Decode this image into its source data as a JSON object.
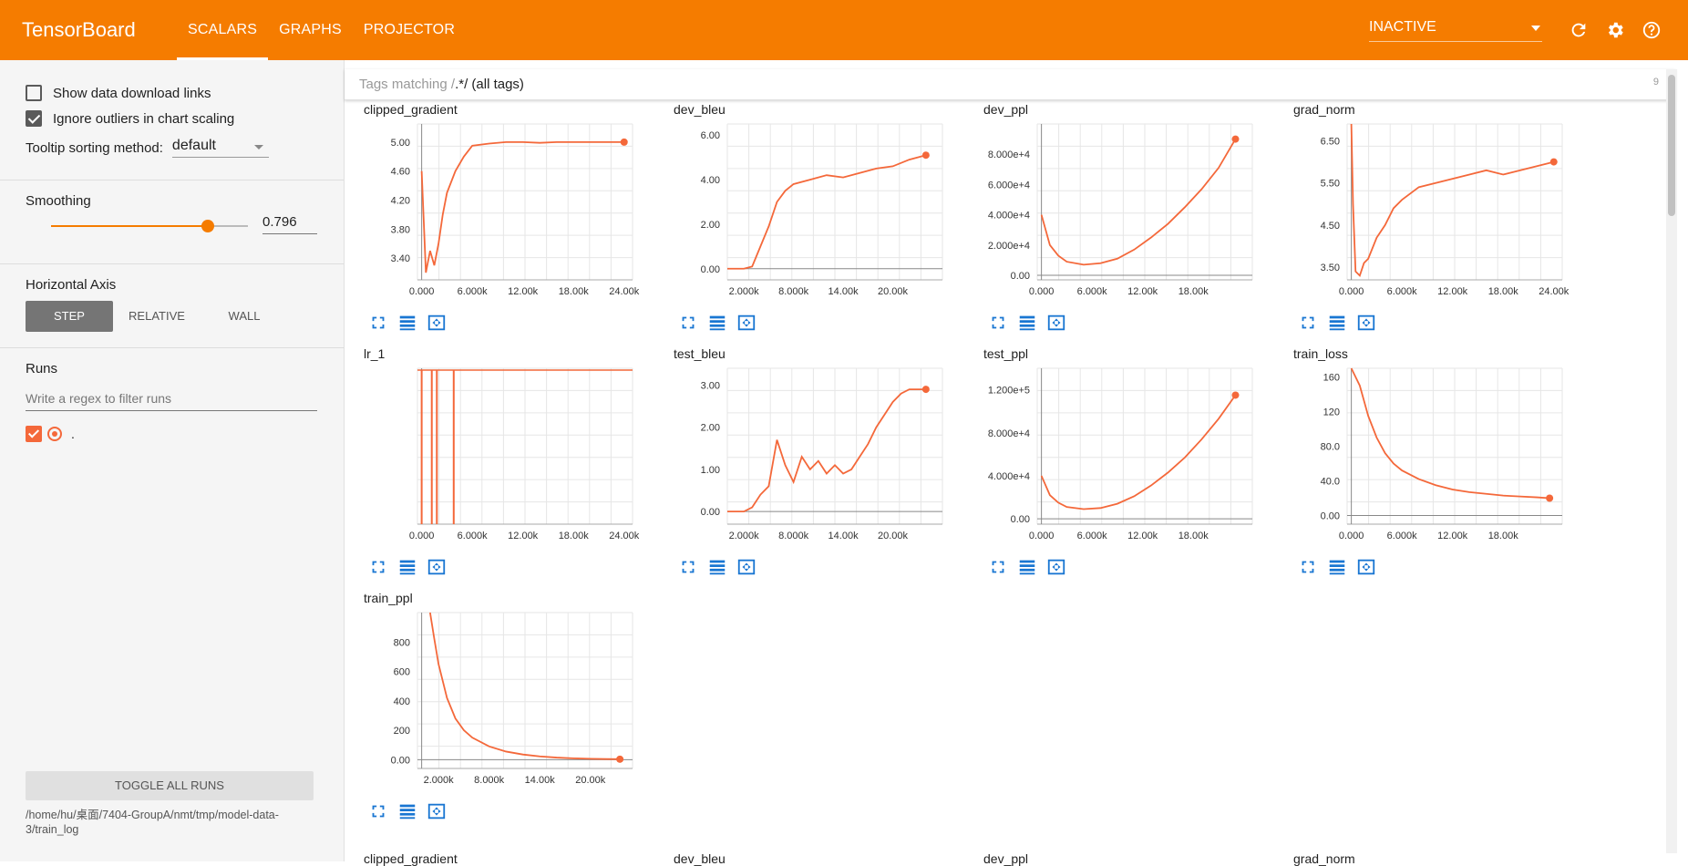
{
  "app": {
    "title": "TensorBoard"
  },
  "nav": {
    "tabs": [
      {
        "label": "SCALARS",
        "active": true
      },
      {
        "label": "GRAPHS"
      },
      {
        "label": "PROJECTOR"
      }
    ]
  },
  "toolbar": {
    "status": "INACTIVE",
    "icons": [
      "refresh-icon",
      "settings-icon",
      "help-icon"
    ]
  },
  "sidebar": {
    "show_download_links": "Show data download links",
    "ignore_outliers": "Ignore outliers in chart scaling",
    "tooltip_label": "Tooltip sorting method:",
    "tooltip_value": "default",
    "smoothing_label": "Smoothing",
    "smoothing_value": "0.796",
    "smoothing_level": 0.796,
    "haxis_label": "Horizontal Axis",
    "haxis_options": [
      "STEP",
      "RELATIVE",
      "WALL"
    ],
    "runs_label": "Runs",
    "runs_filter_placeholder": "Write a regex to filter runs",
    "run_name": ".",
    "toggle_all": "TOGGLE ALL RUNS",
    "logdir": "/home/hu/桌面/7404-GroupA/nmt/tmp/model-data-3/train_log"
  },
  "main": {
    "tag_prefix": "Tags matching /",
    "tag_regex": ".*",
    "tag_suffix": "/ (all tags)",
    "tag_count": "9",
    "below_fold_titles": [
      "clipped_gradient",
      "dev_bleu",
      "dev_ppl",
      "grad_norm"
    ]
  },
  "colors": {
    "accent": "#f57c00",
    "series": "#f4683a",
    "series_light": "#fbc9b5",
    "icon_blue": "#1976d2"
  },
  "chart_data": [
    {
      "type": "line",
      "title": "clipped_gradient",
      "xmin": -500,
      "xmax": 25000,
      "ymin": 3.1,
      "ymax": 5.25,
      "xticks": [
        0,
        6000,
        12000,
        18000,
        24000
      ],
      "xtick_labels": [
        "0.000",
        "6.000k",
        "12.00k",
        "18.00k",
        "24.00k"
      ],
      "yticks": [
        3.4,
        3.8,
        4.2,
        4.6,
        5.0
      ],
      "ytick_labels": [
        "3.40",
        "3.80",
        "4.20",
        "4.60",
        "5.00"
      ],
      "series": [
        {
          "x": [
            0,
            500,
            1000,
            1500,
            2000,
            2500,
            3000,
            4000,
            5000,
            6000,
            8000,
            10000,
            12000,
            14000,
            16000,
            18000,
            20000,
            22000,
            24000
          ],
          "y": [
            4.6,
            3.2,
            3.5,
            3.3,
            3.6,
            4.0,
            4.3,
            4.6,
            4.8,
            4.95,
            4.98,
            5.0,
            5.0,
            4.99,
            5.0,
            5.0,
            5.0,
            5.0,
            5.0
          ]
        }
      ]
    },
    {
      "type": "line",
      "title": "dev_bleu",
      "xmin": 0,
      "xmax": 26000,
      "ymin": -0.5,
      "ymax": 6.5,
      "xticks": [
        2000,
        8000,
        14000,
        20000
      ],
      "xtick_labels": [
        "2.000k",
        "8.000k",
        "14.00k",
        "20.00k"
      ],
      "yticks": [
        0,
        2,
        4,
        6
      ],
      "ytick_labels": [
        "0.00",
        "2.00",
        "4.00",
        "6.00"
      ],
      "series": [
        {
          "x": [
            0,
            2000,
            3000,
            4000,
            5000,
            6000,
            7000,
            8000,
            10000,
            12000,
            14000,
            16000,
            18000,
            20000,
            22000,
            24000
          ],
          "y": [
            0,
            0,
            0.1,
            1.0,
            1.9,
            3.0,
            3.5,
            3.8,
            4.0,
            4.2,
            4.1,
            4.3,
            4.5,
            4.6,
            4.9,
            5.1
          ]
        }
      ]
    },
    {
      "type": "line",
      "title": "dev_ppl",
      "xmin": -500,
      "xmax": 25000,
      "ymin": -3000,
      "ymax": 100000,
      "xticks": [
        0,
        6000,
        12000,
        18000
      ],
      "xtick_labels": [
        "0.000",
        "6.000k",
        "12.00k",
        "18.00k"
      ],
      "yticks": [
        0,
        20000,
        40000,
        60000,
        80000
      ],
      "ytick_labels": [
        "0.00",
        "2.000e+4",
        "4.000e+4",
        "6.000e+4",
        "8.000e+4"
      ],
      "series": [
        {
          "x": [
            0,
            1000,
            2000,
            3000,
            5000,
            7000,
            9000,
            11000,
            13000,
            15000,
            17000,
            19000,
            21000,
            23000
          ],
          "y": [
            40000,
            20000,
            13000,
            9000,
            7000,
            8000,
            11000,
            17000,
            25000,
            34000,
            45000,
            57000,
            71000,
            90000
          ]
        }
      ]
    },
    {
      "type": "line",
      "title": "grad_norm",
      "xmin": -500,
      "xmax": 25000,
      "ymin": 3.2,
      "ymax": 6.9,
      "xticks": [
        0,
        6000,
        12000,
        18000,
        24000
      ],
      "xtick_labels": [
        "0.000",
        "6.000k",
        "12.00k",
        "18.00k",
        "24.00k"
      ],
      "yticks": [
        3.5,
        4.5,
        5.5,
        6.5
      ],
      "ytick_labels": [
        "3.50",
        "4.50",
        "5.50",
        "6.50"
      ],
      "series": [
        {
          "x": [
            0,
            200,
            500,
            1000,
            1500,
            2000,
            3000,
            4000,
            5000,
            6000,
            8000,
            10000,
            12000,
            14000,
            16000,
            18000,
            20000,
            22000,
            24000
          ],
          "y": [
            6.9,
            5.0,
            3.4,
            3.3,
            3.6,
            3.7,
            4.2,
            4.5,
            4.9,
            5.1,
            5.4,
            5.5,
            5.6,
            5.7,
            5.8,
            5.7,
            5.8,
            5.9,
            6.0
          ]
        }
      ]
    },
    {
      "type": "line",
      "title": "lr_1",
      "xmin": -500,
      "xmax": 25000,
      "ymin": 0,
      "ymax": 1,
      "xticks": [
        0,
        6000,
        12000,
        18000,
        24000
      ],
      "xtick_labels": [
        "0.000",
        "6.000k",
        "12.00k",
        "18.00k",
        "24.00k"
      ],
      "yticks": [],
      "ytick_labels": [],
      "spikes_x": [
        0,
        1200,
        1800,
        3800
      ]
    },
    {
      "type": "line",
      "title": "test_bleu",
      "xmin": 0,
      "xmax": 26000,
      "ymin": -0.3,
      "ymax": 3.4,
      "xticks": [
        2000,
        8000,
        14000,
        20000
      ],
      "xtick_labels": [
        "2.000k",
        "8.000k",
        "14.00k",
        "20.00k"
      ],
      "yticks": [
        0,
        1,
        2,
        3
      ],
      "ytick_labels": [
        "0.00",
        "1.00",
        "2.00",
        "3.00"
      ],
      "series": [
        {
          "x": [
            0,
            2000,
            3000,
            4000,
            5000,
            6000,
            7000,
            8000,
            9000,
            10000,
            11000,
            12000,
            13000,
            14000,
            15000,
            16000,
            17000,
            18000,
            19000,
            20000,
            21000,
            22000,
            24000
          ],
          "y": [
            0,
            0,
            0.1,
            0.4,
            0.6,
            1.7,
            1.1,
            0.7,
            1.3,
            1.0,
            1.2,
            0.9,
            1.1,
            0.9,
            1.0,
            1.3,
            1.6,
            2.0,
            2.3,
            2.6,
            2.8,
            2.9,
            2.9
          ]
        }
      ]
    },
    {
      "type": "line",
      "title": "test_ppl",
      "xmin": -500,
      "xmax": 25000,
      "ymin": -5000,
      "ymax": 140000,
      "xticks": [
        0,
        6000,
        12000,
        18000
      ],
      "xtick_labels": [
        "0.000",
        "6.000k",
        "12.00k",
        "18.00k"
      ],
      "yticks": [
        0,
        40000,
        80000,
        120000
      ],
      "ytick_labels": [
        "0.00",
        "4.000e+4",
        "8.000e+4",
        "1.200e+5"
      ],
      "series": [
        {
          "x": [
            0,
            1000,
            2000,
            3000,
            5000,
            7000,
            9000,
            11000,
            13000,
            15000,
            17000,
            19000,
            21000,
            23000
          ],
          "y": [
            40000,
            22000,
            15000,
            11000,
            9000,
            10000,
            14000,
            21000,
            31000,
            43000,
            57000,
            74000,
            93000,
            115000
          ]
        }
      ]
    },
    {
      "type": "line",
      "title": "train_loss",
      "xmin": -500,
      "xmax": 25000,
      "ymin": -10,
      "ymax": 170,
      "xticks": [
        0,
        6000,
        12000,
        18000
      ],
      "xtick_labels": [
        "0.000",
        "6.000k",
        "12.00k",
        "18.00k"
      ],
      "yticks": [
        0,
        40,
        80,
        120,
        160
      ],
      "ytick_labels": [
        "0.00",
        "40.0",
        "80.0",
        "120",
        "160"
      ],
      "series": [
        {
          "x": [
            0,
            500,
            1000,
            2000,
            3000,
            4000,
            5000,
            6000,
            8000,
            10000,
            12000,
            14000,
            16000,
            18000,
            20000,
            22000,
            23500
          ],
          "y": [
            170,
            160,
            150,
            115,
            90,
            72,
            60,
            52,
            42,
            35,
            30,
            27,
            25,
            23,
            22,
            21,
            20
          ]
        }
      ]
    },
    {
      "type": "line",
      "title": "train_ppl",
      "xmin": -500,
      "xmax": 25000,
      "ymin": -60,
      "ymax": 1000,
      "xticks": [
        2000,
        8000,
        14000,
        20000
      ],
      "xtick_labels": [
        "2.000k",
        "8.000k",
        "14.00k",
        "20.00k"
      ],
      "yticks": [
        0,
        200,
        400,
        600,
        800
      ],
      "ytick_labels": [
        "0.00",
        "200",
        "400",
        "600",
        "800"
      ],
      "series": [
        {
          "x": [
            1000,
            1500,
            2000,
            3000,
            4000,
            5000,
            6000,
            8000,
            10000,
            12000,
            14000,
            16000,
            18000,
            20000,
            22000,
            23500
          ],
          "y": [
            1000,
            820,
            650,
            420,
            280,
            200,
            150,
            90,
            55,
            35,
            22,
            14,
            9,
            6,
            4,
            3
          ]
        }
      ]
    }
  ]
}
